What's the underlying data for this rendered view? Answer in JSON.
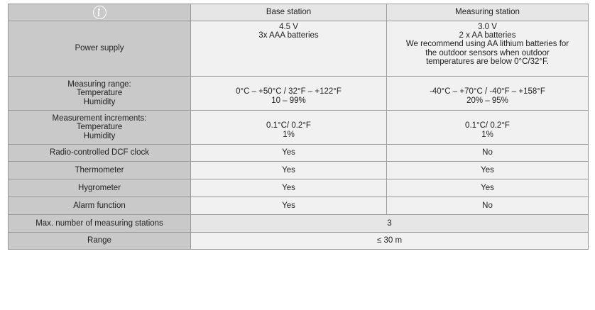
{
  "header": {
    "icon": "info-icon",
    "base_label": "Base station",
    "measuring_label": "Measuring station"
  },
  "rows": [
    {
      "label": [
        "Power supply"
      ],
      "base": [
        "4.5 V",
        "3x AAA batteries",
        "",
        "",
        ""
      ],
      "measuring": [
        "3.0 V",
        "2 x AA batteries",
        "We recommend using AA lithium batteries for",
        "the outdoor sensors when outdoor",
        "temperatures are below 0°C/32°F."
      ]
    },
    {
      "label": [
        "Measuring range:",
        "Temperature",
        "Humidity"
      ],
      "base": [
        "",
        "0°C – +50°C / 32°F – +122°F",
        "10 – 99%"
      ],
      "measuring": [
        "",
        "-40°C – +70°C / -40°F – +158°F",
        "20% – 95%"
      ]
    },
    {
      "label": [
        "Measurement increments:",
        "Temperature",
        "Humidity"
      ],
      "base": [
        "",
        "0.1°C/ 0.2°F",
        "1%"
      ],
      "measuring": [
        "",
        "0.1°C/ 0.2°F",
        "1%"
      ]
    },
    {
      "label": [
        "Radio-controlled DCF clock"
      ],
      "base": [
        "Yes"
      ],
      "measuring": [
        "No"
      ]
    },
    {
      "label": [
        "Thermometer"
      ],
      "base": [
        "Yes"
      ],
      "measuring": [
        "Yes"
      ]
    },
    {
      "label": [
        "Hygrometer"
      ],
      "base": [
        "Yes"
      ],
      "measuring": [
        "Yes"
      ]
    },
    {
      "label": [
        "Alarm function"
      ],
      "base": [
        "Yes"
      ],
      "measuring": [
        "No"
      ]
    }
  ],
  "merged_rows": [
    {
      "label": "Max. number of measuring stations",
      "value": "3"
    },
    {
      "label": "Range",
      "value": "≤ 30 m"
    }
  ]
}
